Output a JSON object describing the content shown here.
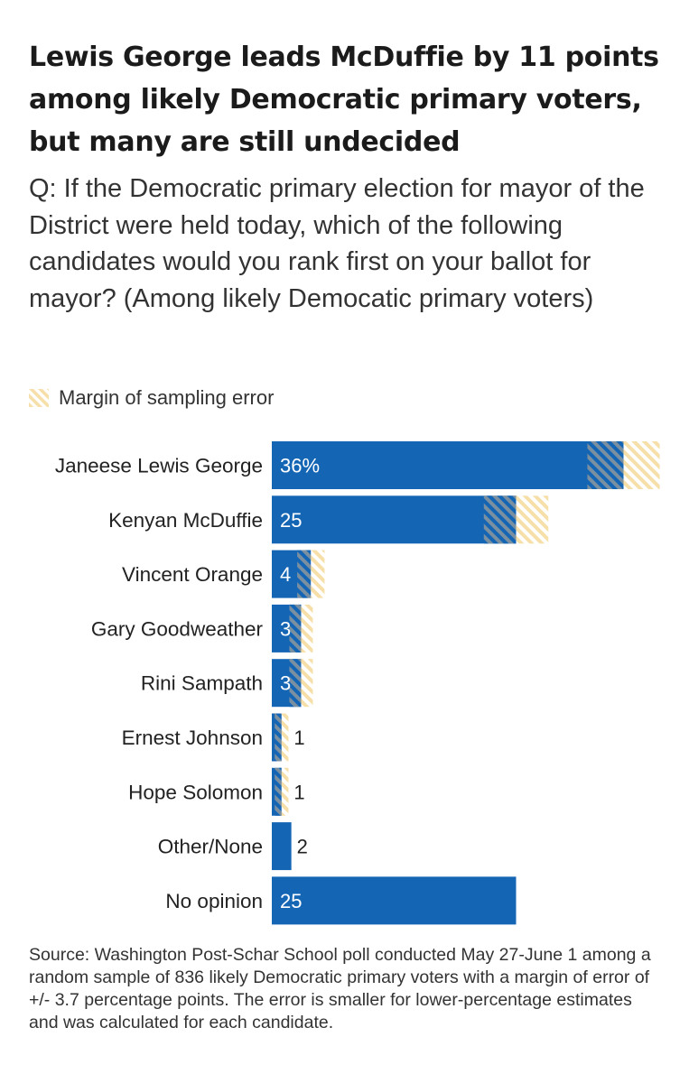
{
  "header": {
    "title": "Lewis George leads McDuffie by 11 points among likely Democratic primary voters, but many are still undecided",
    "subtitle": "Q: If the Democratic primary election for mayor of the District were held today, which of the following candidates would you rank first on your ballot for mayor? (Among likely Democatic primary voters)"
  },
  "legend": {
    "label": "Margin of sampling error"
  },
  "colors": {
    "bar": "#1565b5",
    "margin": "#f6dfa8",
    "overlap": "#7a8fa0",
    "text_dark": "#222222",
    "text_light": "#ffffff"
  },
  "chart_data": {
    "type": "bar",
    "orientation": "horizontal",
    "categories": [
      "Janeese Lewis George",
      "Kenyan McDuffie",
      "Vincent Orange",
      "Gary Goodweather",
      "Rini Sampath",
      "Ernest Johnson",
      "Hope Solomon",
      "Other/None",
      "No opinion"
    ],
    "values": [
      36,
      25,
      4,
      3,
      3,
      1,
      1,
      2,
      25
    ],
    "value_labels": [
      "36%",
      "25",
      "4",
      "3",
      "3",
      "1",
      "1",
      "2",
      "25"
    ],
    "margin_of_error": [
      3.7,
      3.3,
      1.4,
      1.2,
      1.2,
      0.7,
      0.7,
      null,
      null
    ],
    "xlim": [
      0,
      40
    ],
    "legend": "top-left"
  },
  "footer": {
    "source": "Source: Washington Post-Schar School poll conducted May 27-June 1 among a random sample of 836 likely Democratic primary voters with a margin of error of +/- 3.7 percentage points. The error is smaller for lower-percentage estimates and was calculated for each candidate."
  }
}
